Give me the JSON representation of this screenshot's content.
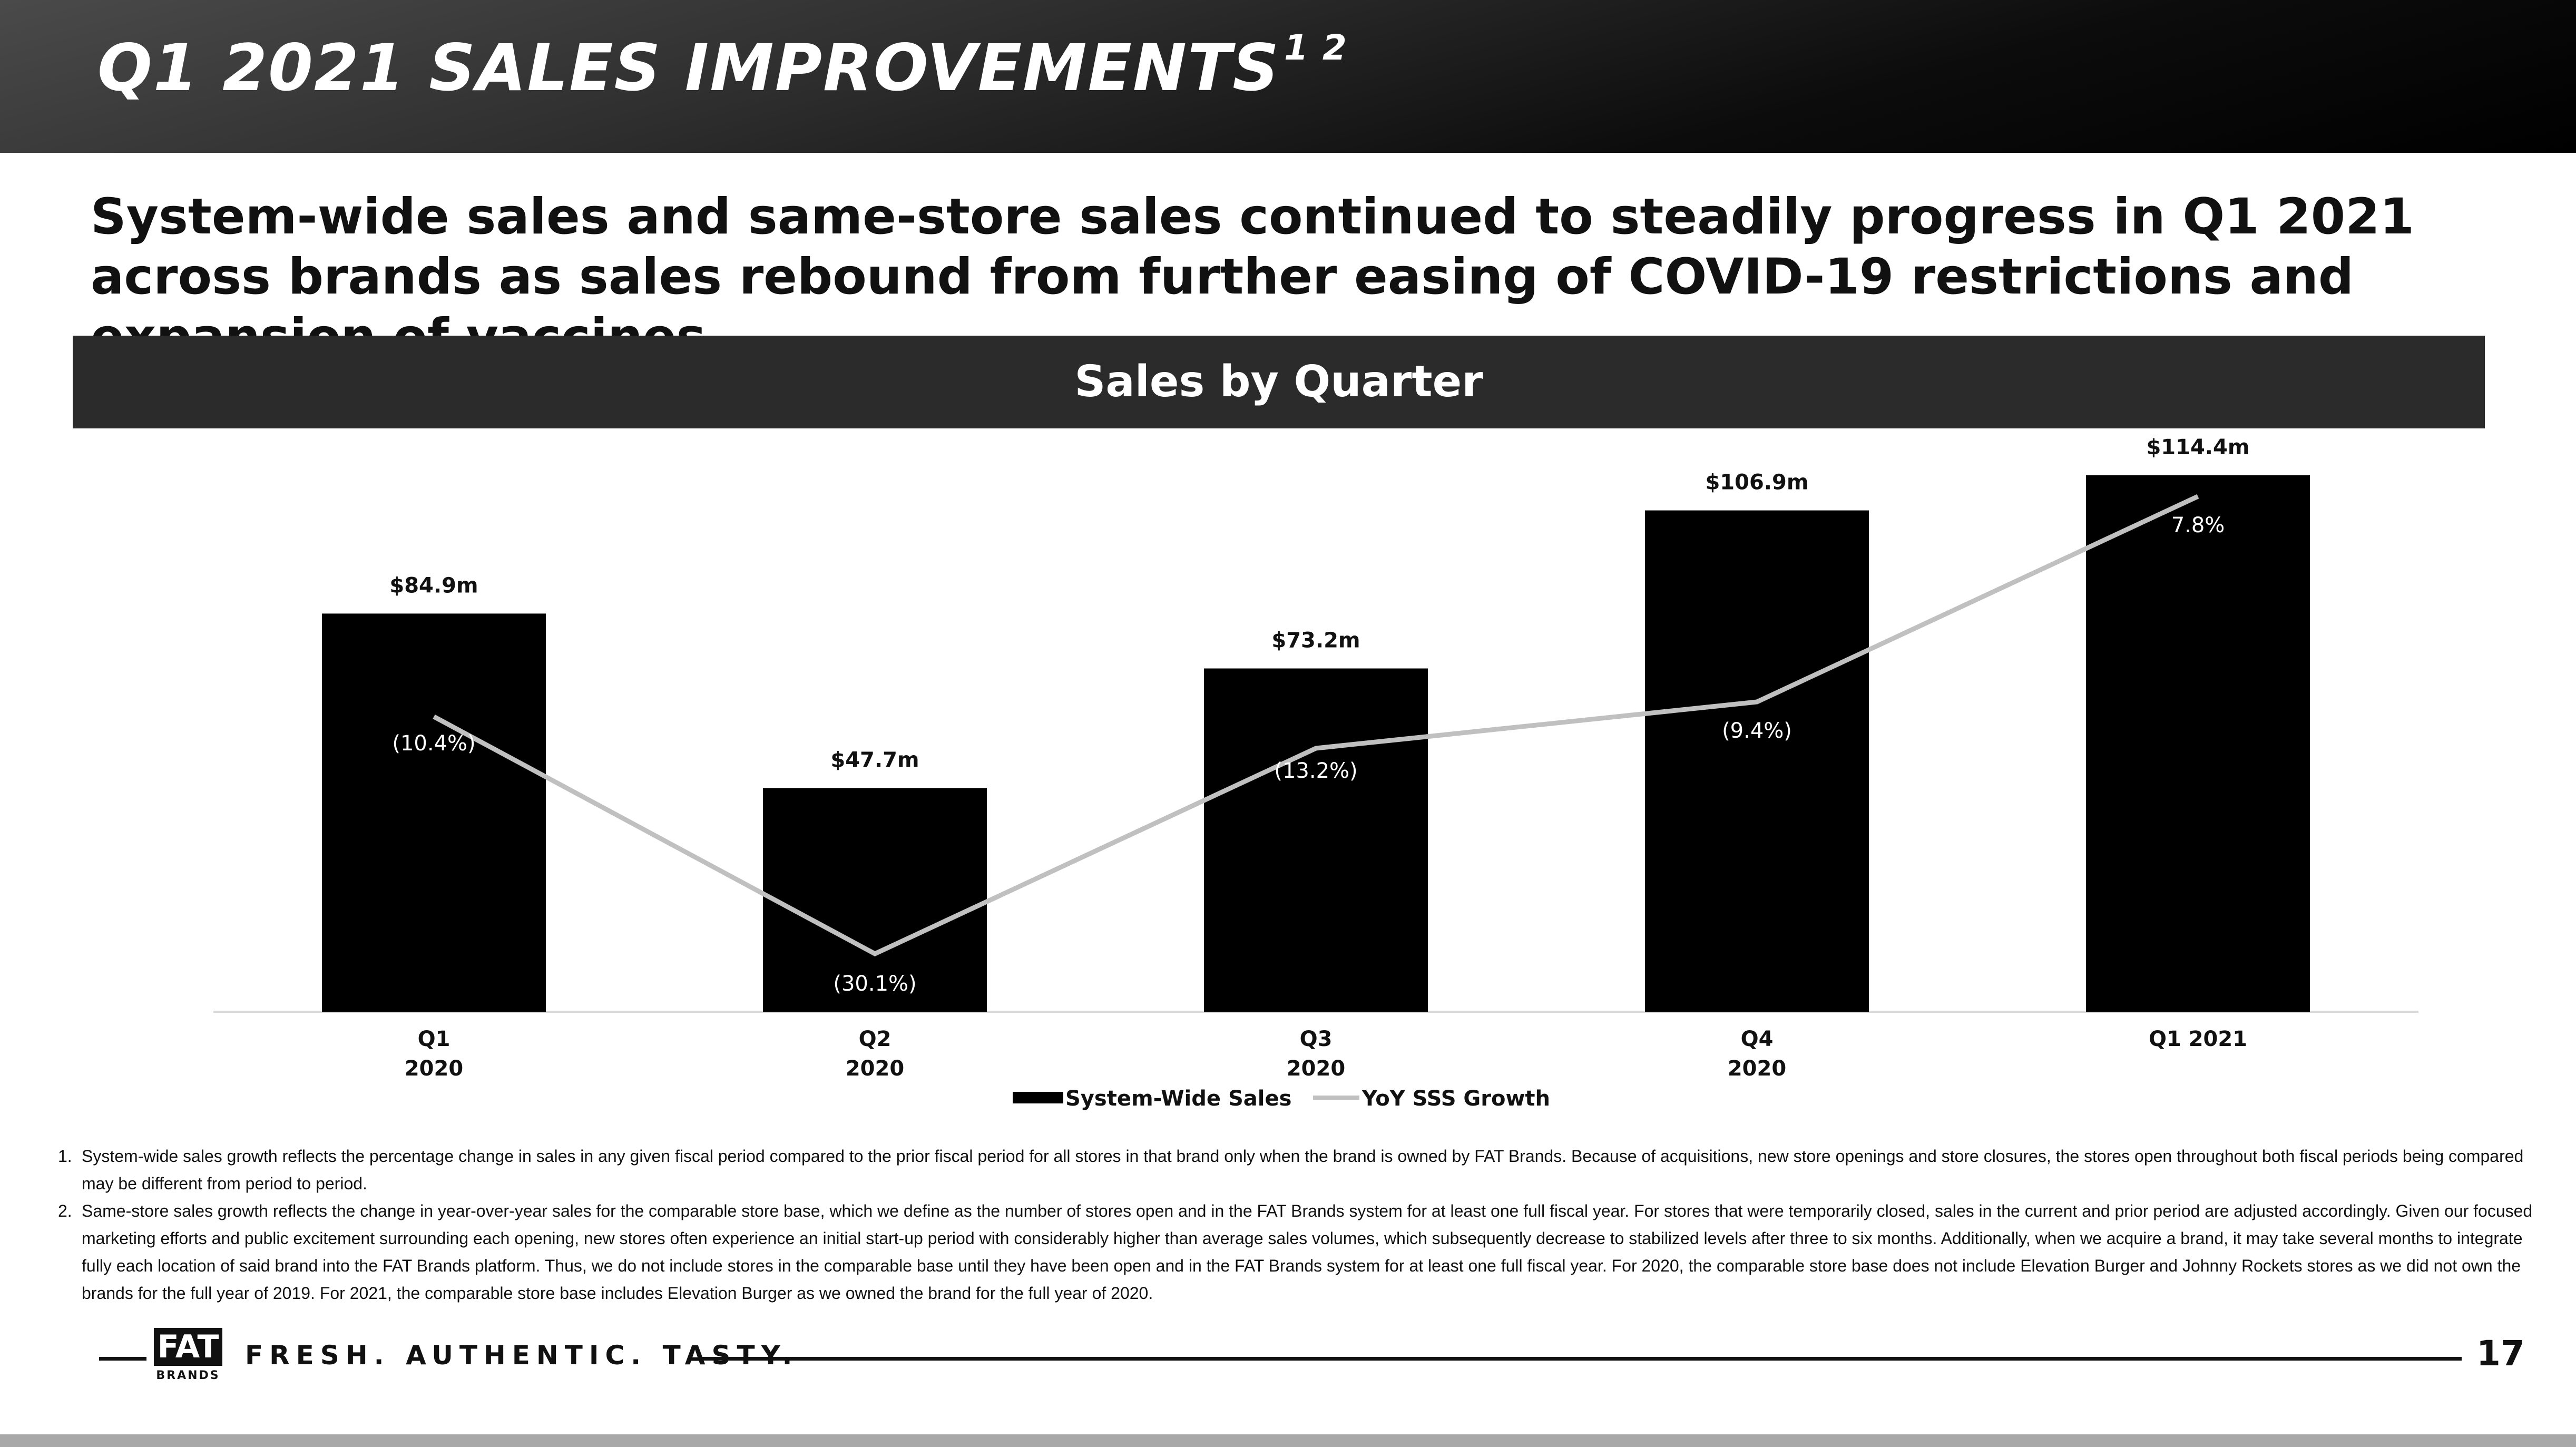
{
  "header": {
    "title": "Q1 2021 SALES IMPROVEMENTS",
    "title_superscript": "1 2"
  },
  "subtitle": "System-wide sales and same-store sales continued to steadily progress in Q1 2021 across brands as sales rebound from further easing of COVID-19 restrictions and expansion of vaccines",
  "chart_banner": "Sales by Quarter",
  "colors": {
    "bar": "#000000",
    "line": "#c0c0c0",
    "banner": "#2b2b2b",
    "header": "#000000"
  },
  "chart_data": {
    "type": "bar",
    "title": "Sales by Quarter",
    "categories": [
      [
        "Q1",
        "2020"
      ],
      [
        "Q2",
        "2020"
      ],
      [
        "Q3",
        "2020"
      ],
      [
        "Q4",
        "2020"
      ],
      [
        "Q1 2021"
      ]
    ],
    "series": [
      {
        "name": "System-Wide Sales",
        "type": "bar",
        "values": [
          84.9,
          47.7,
          73.2,
          106.9,
          114.4
        ],
        "labels": [
          "$84.9m",
          "$47.7m",
          "$73.2m",
          "$106.9m",
          "$114.4m"
        ]
      },
      {
        "name": "YoY SSS Growth",
        "type": "line",
        "values": [
          -10.4,
          -30.1,
          -13.2,
          -9.4,
          7.8
        ],
        "labels": [
          "(10.4%)",
          "(30.1%)",
          "(13.2%)",
          "(9.4%)",
          "7.8%"
        ]
      }
    ],
    "legend": "bottom",
    "grid": false
  },
  "footnotes": [
    {
      "num": "1.",
      "text": "System-wide sales growth reflects the percentage change in sales in any given fiscal period compared to the prior fiscal period for all stores in that brand only when the brand is owned by FAT Brands.  Because of acquisitions, new store openings and store closures, the stores open throughout both fiscal periods being compared may be different from period to period."
    },
    {
      "num": "2.",
      "text": "Same-store sales growth reflects the change in year-over-year sales for the comparable store base, which we define as the number of stores open and in the FAT Brands system for at least one full fiscal year. For stores that were temporarily closed, sales in the current and prior period are adjusted accordingly. Given our focused marketing efforts and public excitement surrounding each opening, new stores often experience an initial start-up period with considerably higher than average sales volumes, which subsequently decrease to stabilized levels after three to six months.  Additionally, when we acquire a brand, it may take several months to integrate fully each location of said brand into the FAT Brands platform. Thus, we do not include stores in the comparable base until they have been open and in the FAT Brands system for at least one full fiscal year.  For 2020, the comparable store base does not include Elevation Burger and Johnny Rockets stores as we did not own the brands for the full year of 2019. For 2021, the comparable store base includes Elevation Burger as we owned the brand for the full year of 2020."
    }
  ],
  "footer": {
    "logo_text": "FAT",
    "logo_subtext": "BRANDS",
    "tagline": "FRESH. AUTHENTIC. TASTY.",
    "page_number": "17"
  }
}
